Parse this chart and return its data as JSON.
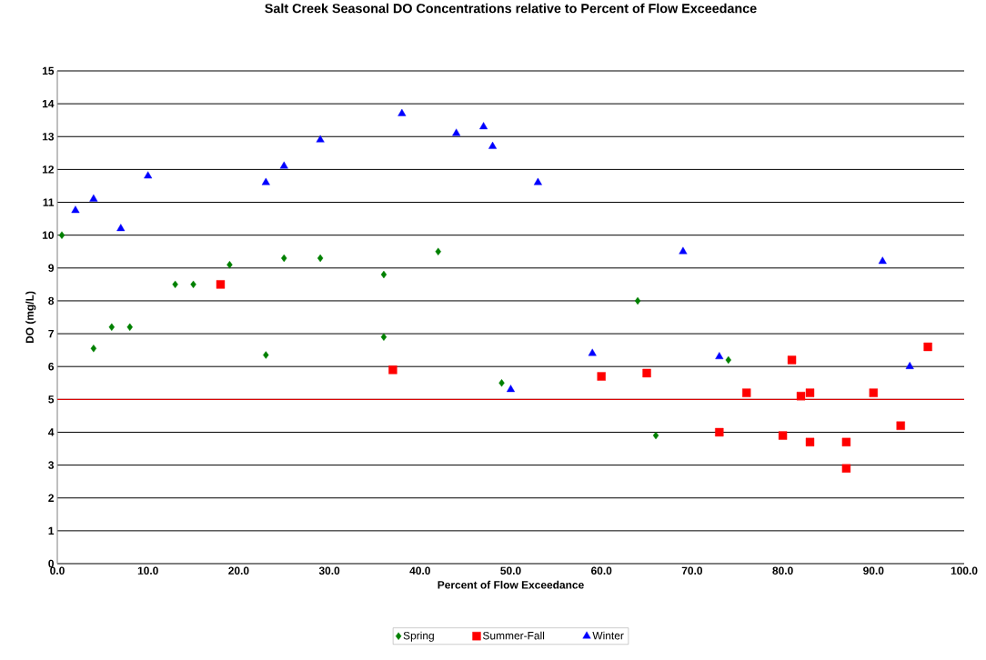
{
  "chart_data": {
    "type": "scatter",
    "title": "Salt Creek Seasonal DO Concentrations relative to Percent of Flow Exceedance",
    "xlabel": "Percent of Flow Exceedance",
    "ylabel": "DO (mg/L)",
    "xlim": [
      0,
      100
    ],
    "ylim": [
      0,
      15
    ],
    "xticks": [
      {
        "value": 0,
        "label": "0.0"
      },
      {
        "value": 10,
        "label": "10.0"
      },
      {
        "value": 20,
        "label": "20.0"
      },
      {
        "value": 30,
        "label": "30.0"
      },
      {
        "value": 40,
        "label": "40.0"
      },
      {
        "value": 50,
        "label": "50.0"
      },
      {
        "value": 60,
        "label": "60.0"
      },
      {
        "value": 70,
        "label": "70.0"
      },
      {
        "value": 80,
        "label": "80.0"
      },
      {
        "value": 90,
        "label": "90.0"
      },
      {
        "value": 100,
        "label": "100.0"
      }
    ],
    "yticks": [
      0,
      1,
      2,
      3,
      4,
      5,
      6,
      7,
      8,
      9,
      10,
      11,
      12,
      13,
      14,
      15
    ],
    "grid": "y",
    "legend": "bottom",
    "ref_lines": [
      {
        "axis": "y",
        "value": 5,
        "color": "#ff0000"
      }
    ],
    "series": [
      {
        "name": "Spring",
        "color": "#008000",
        "marker": "diamond",
        "x": [
          0.5,
          4,
          6,
          8,
          13,
          15,
          19,
          23,
          25,
          29,
          36,
          36,
          42,
          49,
          64,
          66,
          74
        ],
        "values": [
          10,
          6.55,
          7.2,
          7.2,
          8.5,
          8.5,
          9.1,
          6.35,
          9.3,
          9.3,
          8.8,
          6.9,
          9.5,
          5.5,
          8.0,
          3.9,
          6.2
        ]
      },
      {
        "name": "Summer-Fall",
        "color": "#ff0000",
        "marker": "square",
        "x": [
          18,
          37,
          60,
          65,
          73,
          76,
          80,
          81,
          82,
          83,
          83,
          87,
          87,
          90,
          93,
          96
        ],
        "values": [
          8.5,
          5.9,
          5.7,
          5.8,
          4.0,
          5.2,
          3.9,
          6.2,
          5.1,
          5.2,
          3.7,
          3.7,
          2.9,
          5.2,
          4.2,
          6.6
        ]
      },
      {
        "name": "Winter",
        "color": "#0000ff",
        "marker": "triangle",
        "x": [
          2,
          4,
          7,
          10,
          23,
          25,
          29,
          38,
          44,
          47,
          48,
          53,
          50,
          59,
          69,
          73,
          91,
          94
        ],
        "values": [
          10.75,
          11.1,
          10.2,
          11.8,
          11.6,
          12.1,
          12.9,
          13.7,
          13.1,
          13.3,
          12.7,
          11.6,
          5.3,
          6.4,
          9.5,
          6.3,
          9.2,
          6.0
        ]
      }
    ]
  }
}
